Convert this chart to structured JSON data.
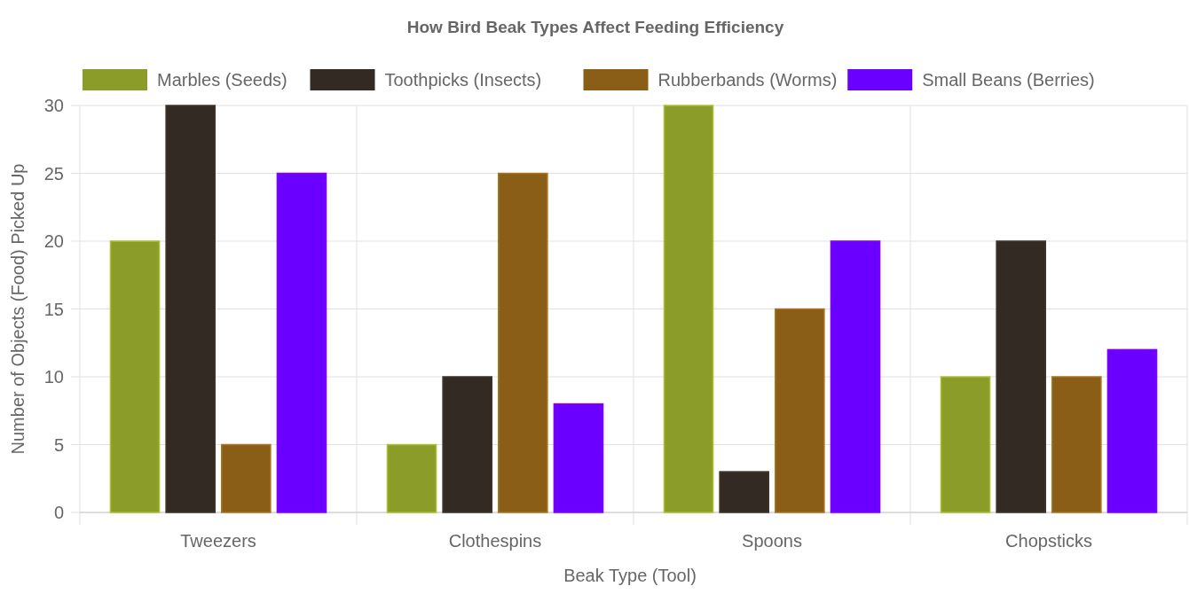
{
  "chart_data": {
    "type": "bar",
    "title": "How Bird Beak Types Affect Feeding Efficiency",
    "xlabel": "Beak Type (Tool)",
    "ylabel": "Number of Objects (Food) Picked Up",
    "categories": [
      "Tweezers",
      "Clothespins",
      "Spoons",
      "Chopsticks"
    ],
    "series": [
      {
        "name": "Marbles (Seeds)",
        "color": "#8c9c28",
        "values": [
          20,
          5,
          30,
          10
        ]
      },
      {
        "name": "Toothpicks (Insects)",
        "color": "#322a23",
        "values": [
          30,
          10,
          3,
          20
        ]
      },
      {
        "name": "Rubberbands (Worms)",
        "color": "#8a5e17",
        "values": [
          5,
          25,
          15,
          10
        ]
      },
      {
        "name": "Small Beans (Berries)",
        "color": "#6a00ff",
        "values": [
          25,
          8,
          20,
          12
        ]
      }
    ],
    "ylim": [
      0,
      30
    ],
    "yticks": [
      0,
      5,
      10,
      15,
      20,
      25,
      30
    ],
    "grid": true,
    "legend": "top"
  }
}
